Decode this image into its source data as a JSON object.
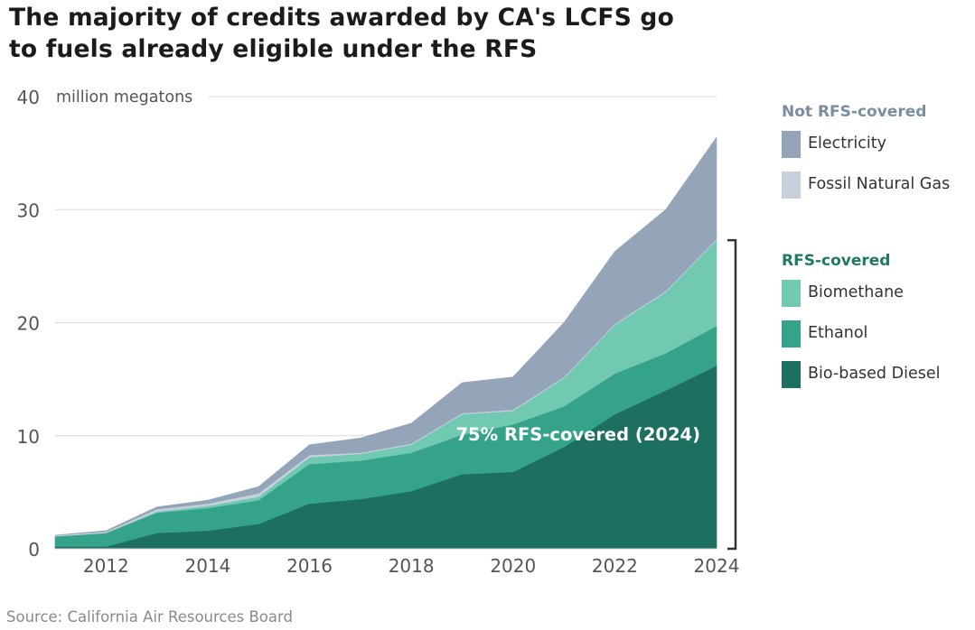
{
  "title": {
    "line1": "The majority of credits awarded by CA's LCFS go",
    "line2": "to fuels already eligible under the RFS"
  },
  "source": "Source: California Air Resources Board",
  "legend": {
    "groups": [
      {
        "heading": "Not RFS-covered",
        "color": "#7a8da1",
        "items": [
          {
            "label": "Electricity",
            "color": "#94a5b9"
          },
          {
            "label": "Fossil Natural Gas",
            "color": "#c7d0dc"
          }
        ]
      },
      {
        "heading": "RFS-covered",
        "color": "#1f7a63",
        "items": [
          {
            "label": "Biomethane",
            "color": "#72c9b1"
          },
          {
            "label": "Ethanol",
            "color": "#35a389"
          },
          {
            "label": "Bio-based Diesel",
            "color": "#1d6f60"
          }
        ]
      }
    ]
  },
  "chart_data": {
    "type": "area",
    "stacked": true,
    "title": "The majority of credits awarded by CA's LCFS go to fuels already eligible under the RFS",
    "ylabel": "million megatons",
    "xlabel": "",
    "x": [
      2011,
      2012,
      2013,
      2014,
      2015,
      2016,
      2017,
      2018,
      2019,
      2020,
      2021,
      2022,
      2023,
      2024
    ],
    "xticks": [
      "2012",
      "2014",
      "2016",
      "2018",
      "2020",
      "2022",
      "2024"
    ],
    "yticks": [
      "0",
      "10",
      "20",
      "30",
      "40"
    ],
    "ylim": [
      0,
      40
    ],
    "xlim": [
      2011,
      2024
    ],
    "grid": true,
    "series": [
      {
        "name": "Bio-based Diesel",
        "color": "#1d6f60",
        "values": [
          0.2,
          0.2,
          1.4,
          1.6,
          2.2,
          4.0,
          4.4,
          5.1,
          6.6,
          6.8,
          9.0,
          11.9,
          14.0,
          16.2
        ]
      },
      {
        "name": "Ethanol",
        "color": "#35a389",
        "values": [
          0.9,
          1.2,
          1.8,
          2.0,
          2.1,
          3.5,
          3.4,
          3.4,
          3.5,
          4.2,
          3.6,
          3.6,
          3.3,
          3.5
        ]
      },
      {
        "name": "Biomethane",
        "color": "#72c9b1",
        "values": [
          0.0,
          0.0,
          0.1,
          0.2,
          0.3,
          0.6,
          0.6,
          0.7,
          1.8,
          1.2,
          2.5,
          4.3,
          5.4,
          7.6
        ]
      },
      {
        "name": "Fossil Natural Gas",
        "color": "#c7d0dc",
        "values": [
          0.1,
          0.1,
          0.2,
          0.2,
          0.3,
          0.2,
          0.1,
          0.1,
          0.1,
          0.1,
          0.1,
          0.1,
          0.1,
          0.1
        ]
      },
      {
        "name": "Electricity",
        "color": "#94a5b9",
        "values": [
          0.0,
          0.1,
          0.2,
          0.3,
          0.6,
          0.9,
          1.3,
          1.8,
          2.7,
          2.9,
          4.8,
          6.4,
          7.2,
          9.0
        ]
      }
    ],
    "annotation": {
      "text": "75% RFS-covered (2024)",
      "x": 2024,
      "color": "#ffffff"
    },
    "bracket": {
      "from": 0,
      "to": 27.3
    }
  }
}
